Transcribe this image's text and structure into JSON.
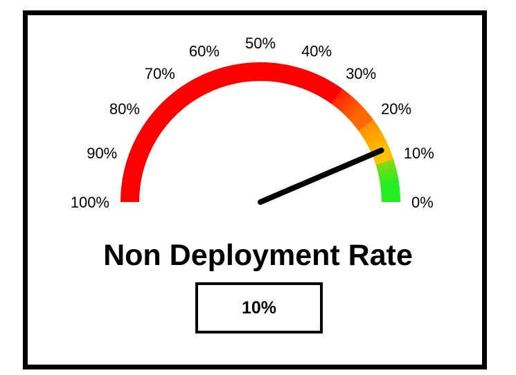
{
  "chart_data": {
    "type": "gauge",
    "title": "Non Deployment Rate",
    "value": 10,
    "value_label": "10%",
    "min": 0,
    "max": 100,
    "direction": "right-to-left",
    "tick_values": [
      0,
      10,
      20,
      30,
      40,
      50,
      60,
      70,
      80,
      90,
      100
    ],
    "tick_labels": [
      "0%",
      "10%",
      "20%",
      "30%",
      "40%",
      "50%",
      "60%",
      "70%",
      "80%",
      "90%",
      "100%"
    ],
    "color_bands": [
      {
        "from": 0,
        "to": 10,
        "color": "#22ee22"
      },
      {
        "from": 10,
        "to": 20,
        "color": "#ffc000"
      },
      {
        "from": 20,
        "to": 30,
        "color": "#ff6a00"
      },
      {
        "from": 30,
        "to": 100,
        "color": "#ff0000"
      }
    ],
    "needle_color": "#000000"
  }
}
